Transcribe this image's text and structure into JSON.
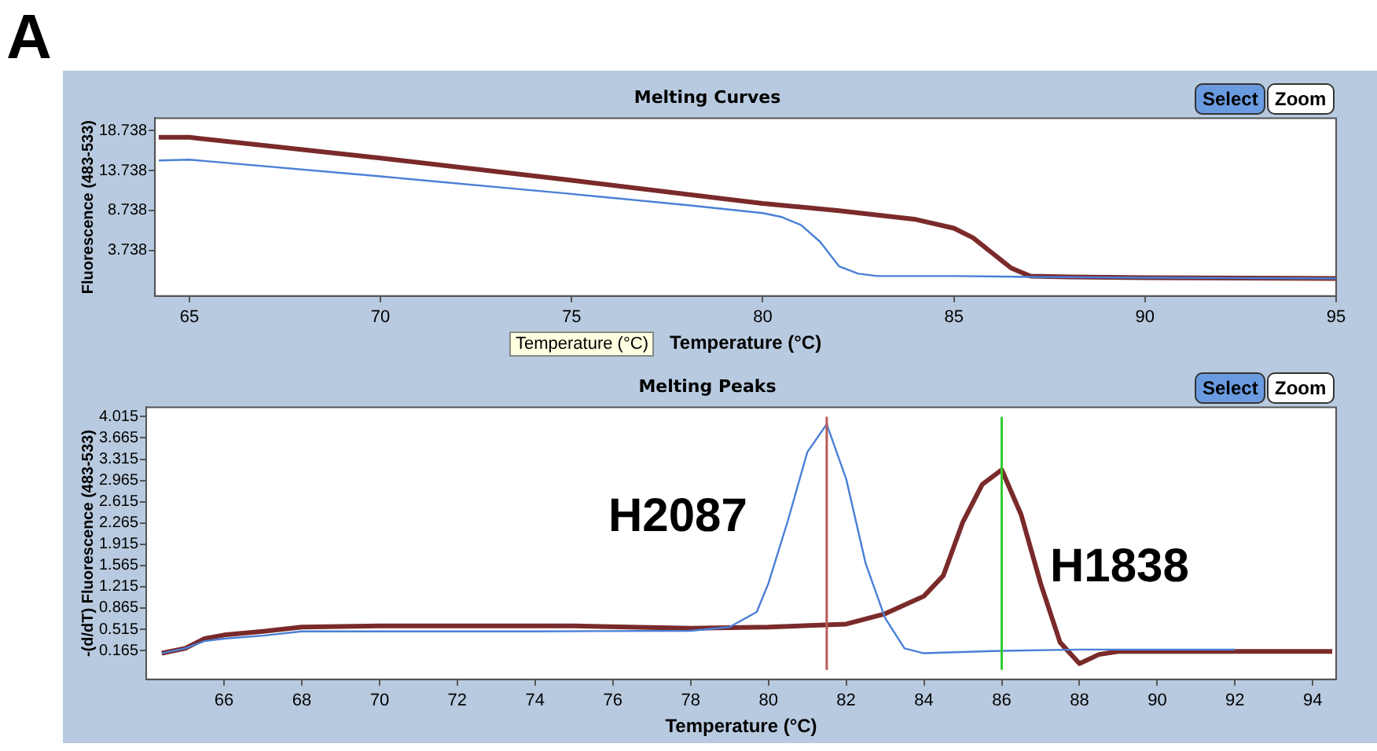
{
  "chart_data": [
    {
      "type": "line",
      "title": "Melting Curves",
      "xlabel": "Temperature (°C)",
      "ylabel": "Fluorescence (483-533)",
      "annotations": [
        "A",
        "Select",
        "Zoom",
        "Temperature (°C)"
      ],
      "xlim": [
        64.1,
        95
      ],
      "xticks": [
        65,
        70,
        75,
        80,
        85,
        90,
        95
      ],
      "ylim": [
        -2.0,
        20.3
      ],
      "yticks": [
        3.738,
        8.738,
        13.738,
        18.738
      ],
      "grid": false,
      "legend": false,
      "marker": "none",
      "line_style": "solid",
      "series": [
        {
          "color": "#4a7fd6",
          "x": [
            64.2,
            65,
            70,
            75,
            78,
            80,
            80.5,
            81,
            81.5,
            82,
            82.5,
            83,
            85,
            87,
            90,
            95
          ],
          "values": [
            15.0,
            15.1,
            13.0,
            10.8,
            9.4,
            8.4,
            7.9,
            6.9,
            4.8,
            1.7,
            0.8,
            0.5,
            0.5,
            0.4,
            0.3,
            0.2
          ]
        },
        {
          "color": "#7a2a2a",
          "x": [
            64.2,
            65,
            70,
            75,
            80,
            82,
            84,
            85,
            85.5,
            86,
            86.5,
            87,
            88,
            90,
            95
          ],
          "values": [
            17.9,
            17.9,
            15.3,
            12.5,
            9.6,
            8.7,
            7.6,
            6.5,
            5.3,
            3.4,
            1.5,
            0.5,
            0.4,
            0.3,
            0.2
          ]
        }
      ]
    },
    {
      "type": "line",
      "title": "Melting Peaks",
      "xlabel": "Temperature (°C)",
      "ylabel": "-(d/dT) Fluorescence (483-533)",
      "annotations": [
        "Select",
        "Zoom",
        "H2087",
        "H1838"
      ],
      "xlim": [
        64.0,
        94.6
      ],
      "xticks": [
        66,
        68,
        70,
        72,
        74,
        76,
        78,
        80,
        82,
        84,
        86,
        88,
        90,
        92,
        94
      ],
      "ylim": [
        -0.31,
        4.17
      ],
      "yticks": [
        0.165,
        0.515,
        0.865,
        1.215,
        1.565,
        1.915,
        2.265,
        2.615,
        2.965,
        3.315,
        3.665,
        4.015
      ],
      "grid": false,
      "legend": false,
      "marker": "none",
      "line_style": "solid",
      "ref_lines": [
        {
          "axis": "x",
          "value": 81.5,
          "color": "#b85a5a"
        },
        {
          "axis": "x",
          "value": 86,
          "color": "#33cc33"
        }
      ],
      "series": [
        {
          "color": "#4a7fd6",
          "x": [
            64.4,
            65,
            65.5,
            66,
            67,
            68,
            70,
            74,
            78,
            79,
            79.7,
            80,
            80.5,
            81,
            81.5,
            82,
            82.5,
            83,
            83.5,
            84,
            86,
            88,
            92
          ],
          "values": [
            0.12,
            0.2,
            0.32,
            0.36,
            0.41,
            0.48,
            0.48,
            0.48,
            0.49,
            0.55,
            0.8,
            1.27,
            2.3,
            3.43,
            3.89,
            2.99,
            1.6,
            0.7,
            0.2,
            0.12,
            0.16,
            0.18,
            0.18
          ]
        },
        {
          "color": "#7a2a2a",
          "x": [
            64.4,
            65,
            65.5,
            66,
            67,
            68,
            70,
            75,
            78,
            80,
            82,
            83,
            84,
            84.5,
            85,
            85.5,
            86,
            86.5,
            87,
            87.5,
            88,
            88.5,
            89,
            94.5
          ],
          "values": [
            0.12,
            0.2,
            0.36,
            0.42,
            0.48,
            0.55,
            0.57,
            0.57,
            0.53,
            0.55,
            0.6,
            0.77,
            1.06,
            1.4,
            2.28,
            2.9,
            3.14,
            2.4,
            1.27,
            0.3,
            -0.05,
            0.1,
            0.15,
            0.15
          ]
        }
      ]
    }
  ]
}
